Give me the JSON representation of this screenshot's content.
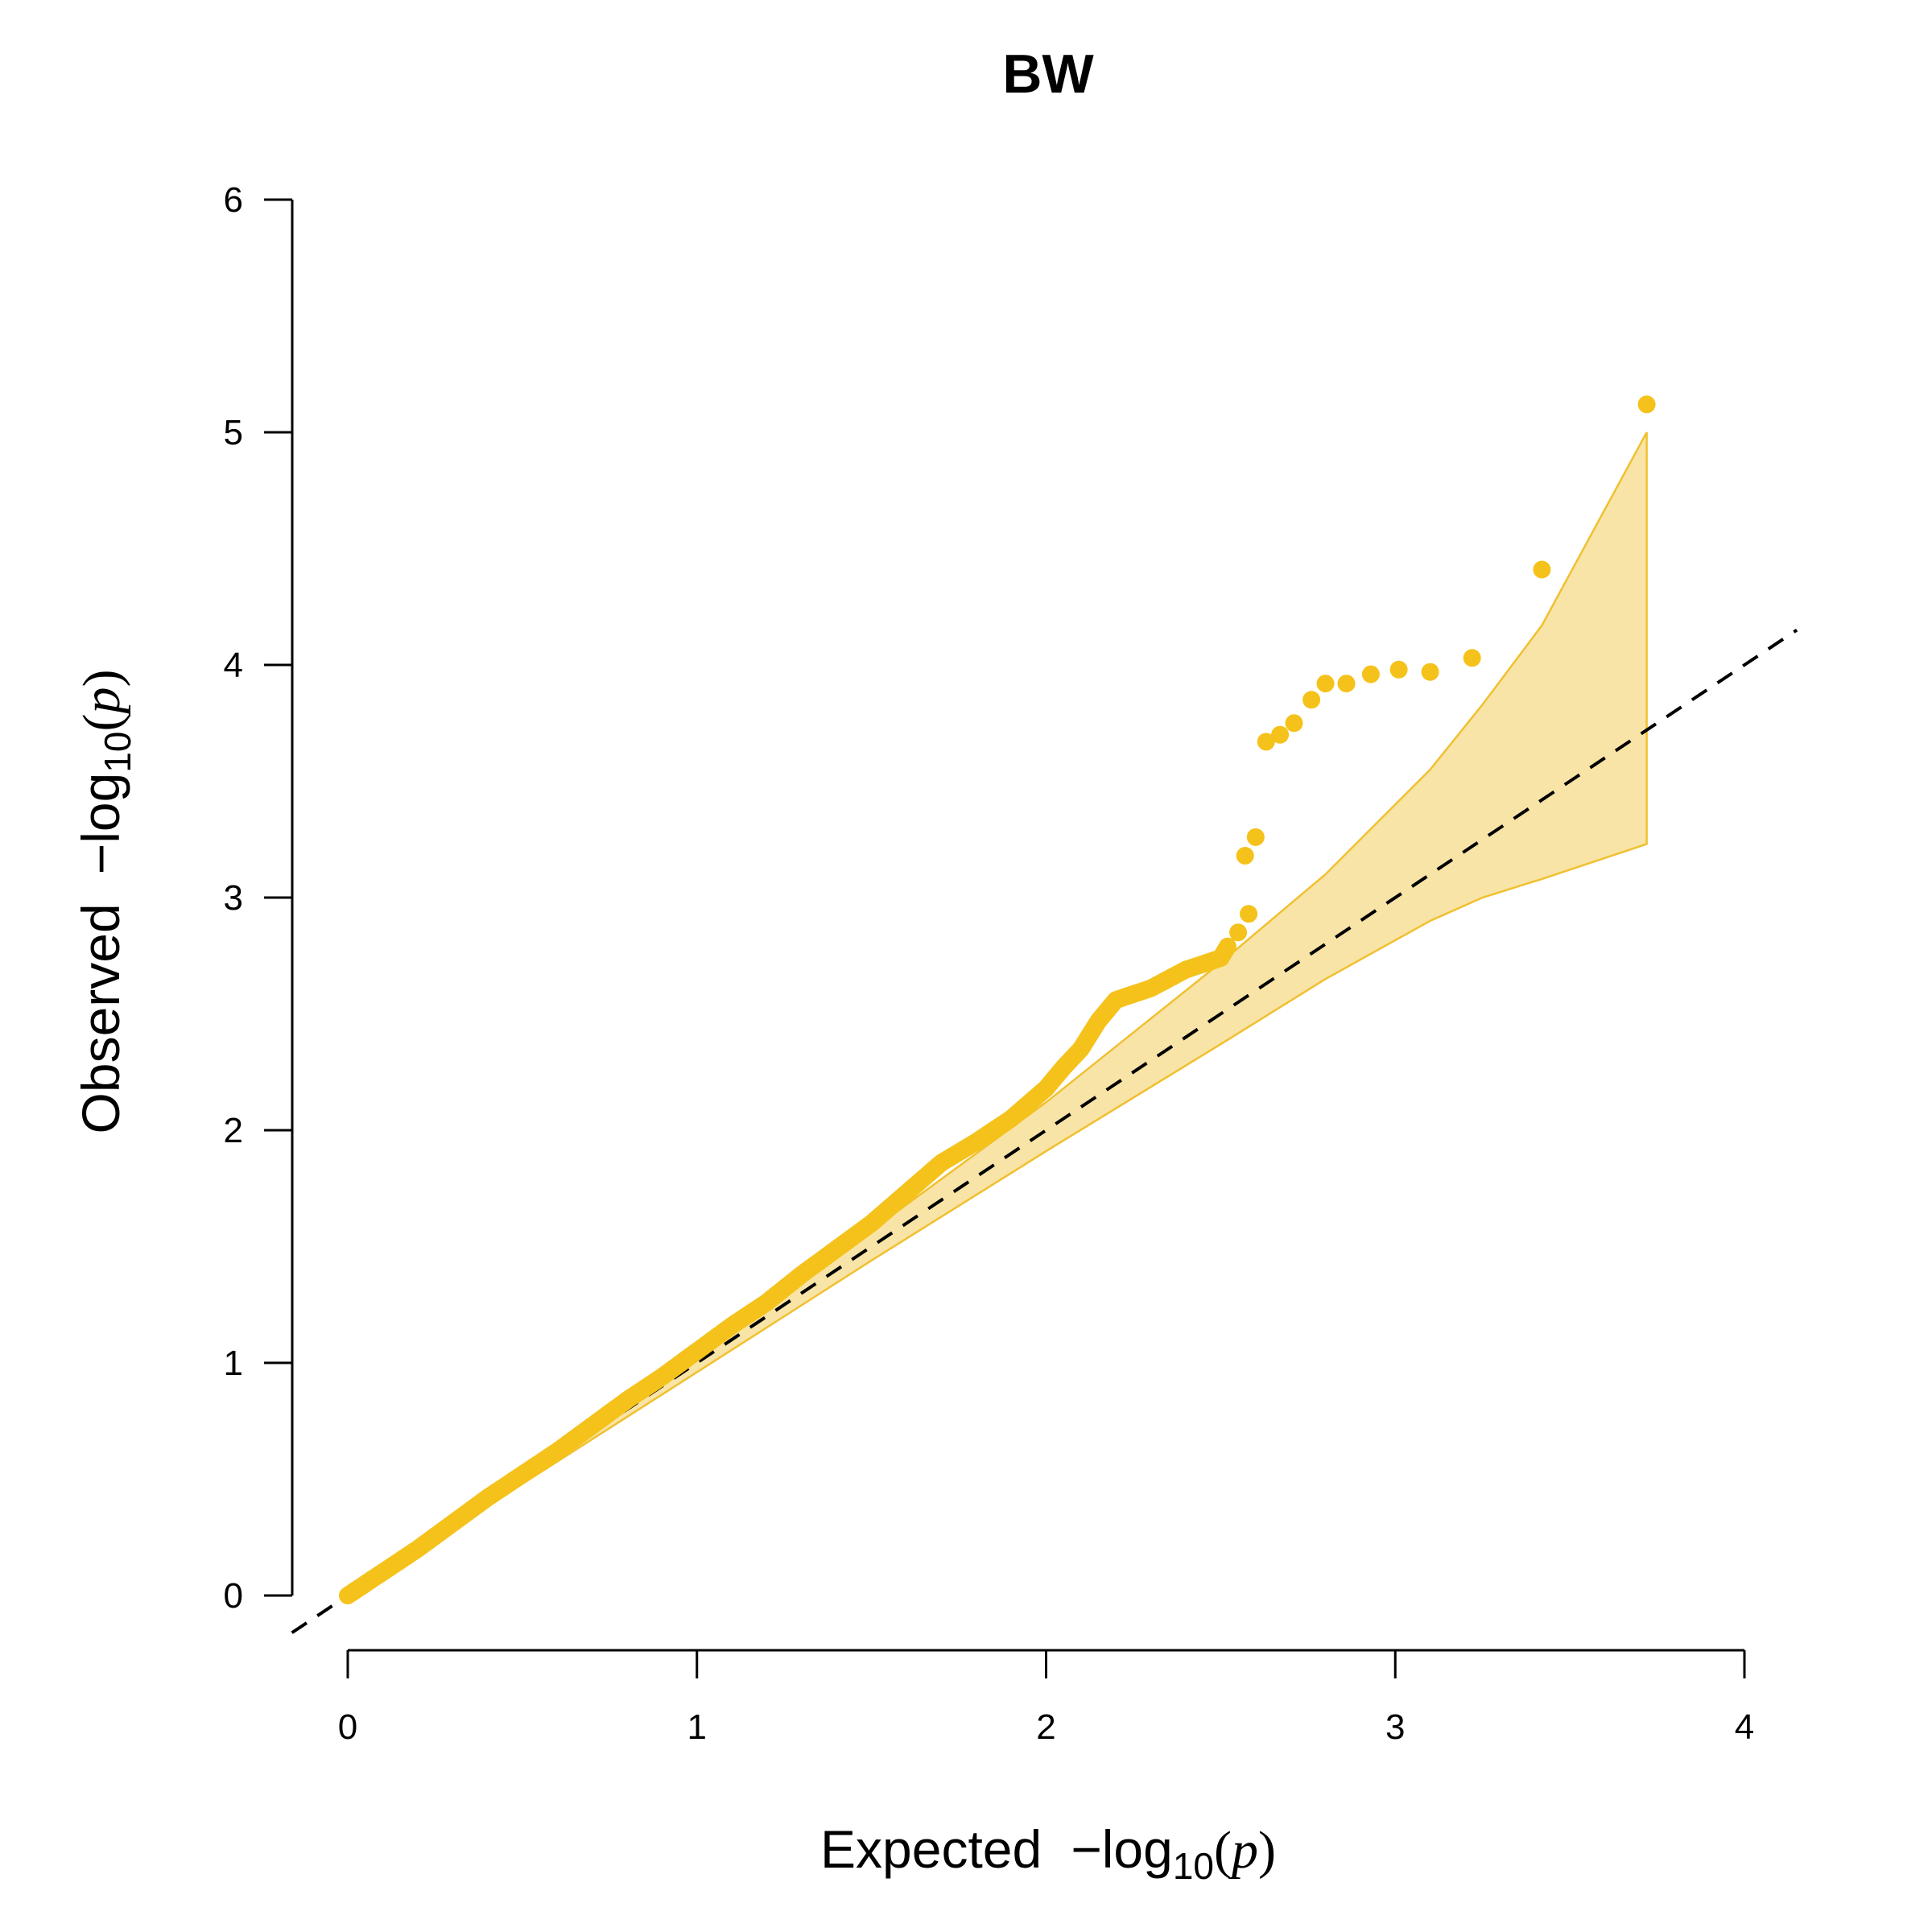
{
  "chart_data": {
    "type": "scatter",
    "title": "BW",
    "xlabel": {
      "prefix": "Expected",
      "minus": "−",
      "log": "log",
      "sub": "10",
      "open": "(",
      "var": "p",
      "close": ")"
    },
    "ylabel": {
      "prefix": "Observed",
      "minus": "−",
      "log": "log",
      "sub": "10",
      "open": "(",
      "var": "p",
      "close": ")"
    },
    "xlim": [
      0,
      4
    ],
    "ylim": [
      0,
      6
    ],
    "xticks": [
      "0",
      "1",
      "2",
      "3",
      "4"
    ],
    "yticks": [
      "0",
      "1",
      "2",
      "3",
      "4",
      "5",
      "6"
    ],
    "point_color": "#F5C21B",
    "band_fill": "#F9E4A7",
    "band_stroke": "#F0C030",
    "reference_line": {
      "style": "dashed",
      "color": "#000000",
      "slope": 1,
      "intercept": 0
    },
    "confidence_band": {
      "x": [
        0,
        0.5,
        1.0,
        1.5,
        2.0,
        2.5,
        2.8,
        3.1,
        3.25,
        3.42,
        3.72
      ],
      "upper": [
        0,
        0.52,
        1.04,
        1.57,
        2.12,
        2.72,
        3.1,
        3.55,
        3.83,
        4.17,
        5.0
      ],
      "lower": [
        0,
        0.48,
        0.96,
        1.44,
        1.91,
        2.37,
        2.65,
        2.9,
        3.0,
        3.08,
        3.23
      ]
    },
    "trend_points": {
      "x": [
        0.0,
        0.1,
        0.2,
        0.3,
        0.4,
        0.5,
        0.6,
        0.7,
        0.8,
        0.9,
        1.0,
        1.1,
        1.2,
        1.3,
        1.4,
        1.5,
        1.6,
        1.7,
        1.8,
        1.9,
        2.0,
        2.05,
        2.1,
        2.15,
        2.2,
        2.3,
        2.4,
        2.5,
        2.52
      ],
      "y": [
        0.0,
        0.1,
        0.2,
        0.31,
        0.42,
        0.52,
        0.62,
        0.73,
        0.84,
        0.94,
        1.05,
        1.16,
        1.26,
        1.38,
        1.49,
        1.6,
        1.73,
        1.86,
        1.95,
        2.05,
        2.18,
        2.27,
        2.35,
        2.47,
        2.56,
        2.61,
        2.69,
        2.74,
        2.79
      ]
    },
    "tail_points": [
      [
        2.52,
        2.79
      ],
      [
        2.55,
        2.85
      ],
      [
        2.58,
        2.93
      ],
      [
        2.57,
        3.18
      ],
      [
        2.6,
        3.26
      ],
      [
        2.63,
        3.67
      ],
      [
        2.67,
        3.7
      ],
      [
        2.71,
        3.75
      ],
      [
        2.76,
        3.85
      ],
      [
        2.8,
        3.92
      ],
      [
        2.86,
        3.92
      ],
      [
        2.93,
        3.96
      ],
      [
        3.01,
        3.98
      ],
      [
        3.1,
        3.97
      ],
      [
        3.22,
        4.03
      ],
      [
        3.42,
        4.41
      ],
      [
        3.72,
        5.12
      ]
    ]
  }
}
